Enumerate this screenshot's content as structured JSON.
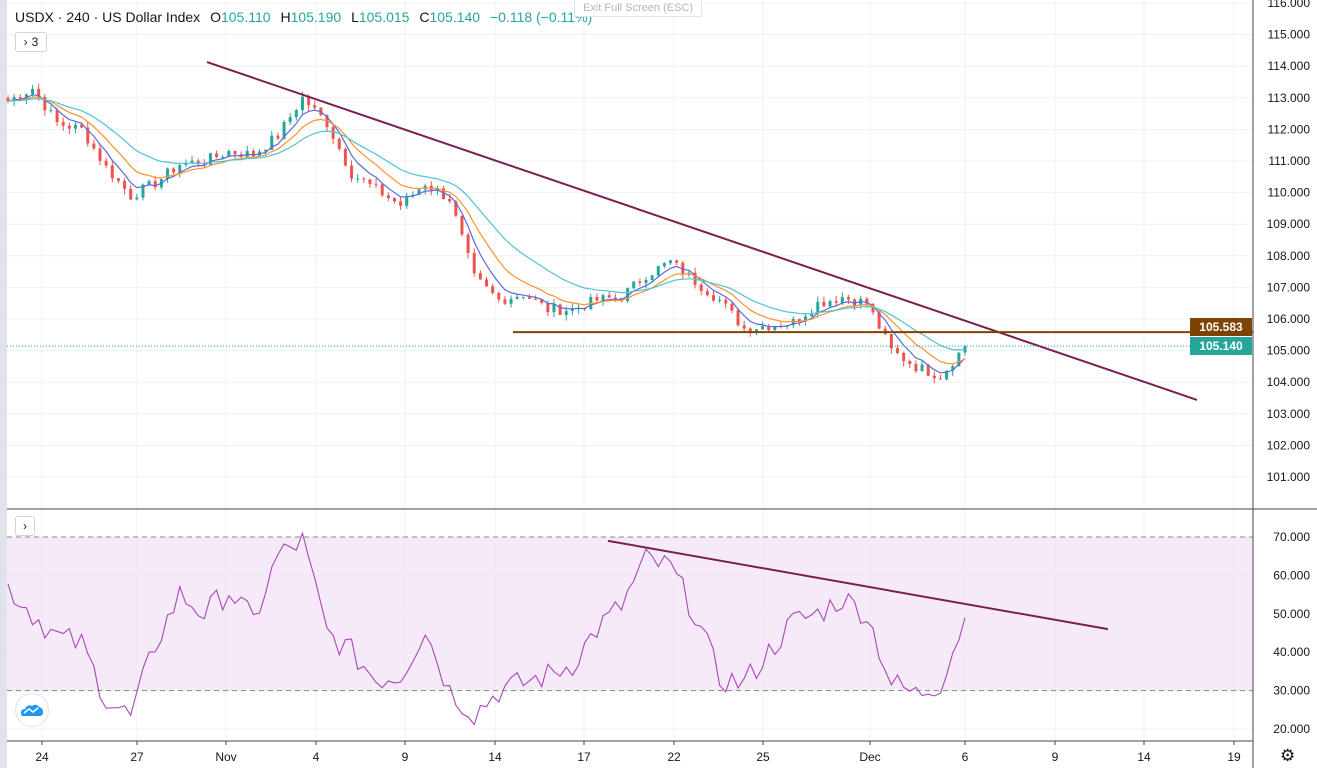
{
  "legend": {
    "symbol_title": "USDX · 240 · US Dollar Index",
    "open_key": "O",
    "open": "105.110",
    "high_key": "H",
    "high": "105.190",
    "low_key": "L",
    "low": "105.015",
    "close_key": "C",
    "close": "105.140",
    "change": "−0.118 (−0.11%)"
  },
  "indicators_toggle": {
    "count": "3",
    "icon": "chevron-right-icon"
  },
  "rsi_toggle": {
    "icon": "chevron-right-icon"
  },
  "exit_fullscreen": "Exit Full Screen (ESC)",
  "price_axis_labels": [
    "116.000",
    "115.000",
    "114.000",
    "113.000",
    "112.000",
    "111.000",
    "110.000",
    "109.000",
    "108.000",
    "107.000",
    "106.000",
    "105.000",
    "104.000",
    "103.000",
    "102.000",
    "101.000"
  ],
  "rsi_axis_labels": [
    "70.000",
    "60.000",
    "50.000",
    "40.000",
    "30.000",
    "20.000"
  ],
  "time_axis_labels": [
    "24",
    "27",
    "Nov",
    "4",
    "9",
    "14",
    "17",
    "22",
    "25",
    "Dec",
    "6",
    "9",
    "14",
    "19"
  ],
  "price_labels": {
    "horizontal_level": "105.583",
    "last_price": "105.140"
  },
  "colors": {
    "up": "#26a69a",
    "down": "#ef5350",
    "ema_fast": "#5b6bd8",
    "ema_mid": "#ff9030",
    "ema_slow": "#4fc3d4",
    "trendline": "#7b1f4e",
    "level": "#7f4300",
    "rsi": "#ab47bc",
    "rsi_band": "#f3e5f5",
    "last_price": "#26a69a"
  },
  "chart_data": [
    {
      "type": "candlestick",
      "title": "USDX · 240 · US Dollar Index",
      "ylim": [
        100.5,
        116.1
      ],
      "grid": true,
      "closes_sampled": [
        112.9,
        113.3,
        112.2,
        112.0,
        110.8,
        109.9,
        110.3,
        110.9,
        111.0,
        111.3,
        111.2,
        111.8,
        113.0,
        112.2,
        110.6,
        110.1,
        109.6,
        110.3,
        109.8,
        107.3,
        106.6,
        106.8,
        106.3,
        106.3,
        106.6,
        106.7,
        107.4,
        107.8,
        107.2,
        106.6,
        105.7,
        105.8,
        105.9,
        106.5,
        106.7,
        106.5,
        105.0,
        104.5,
        104.2,
        105.14
      ],
      "moving_averages": [
        "fast",
        "mid",
        "slow"
      ],
      "trendline": {
        "start": 114.13,
        "end": 103.44
      },
      "horizontal_level": 105.583,
      "last_price": 105.14
    },
    {
      "type": "line",
      "series": [
        {
          "values": [
            57,
            50,
            44,
            42,
            28,
            23,
            42,
            55,
            50,
            56,
            48,
            65,
            69,
            45,
            40,
            33,
            34,
            46,
            30,
            24,
            30,
            32,
            34,
            37,
            46,
            52,
            64,
            62,
            50,
            33,
            32,
            40,
            48,
            50,
            54,
            50,
            32,
            29,
            32,
            49
          ]
        }
      ],
      "ylim": [
        17,
        73
      ],
      "band": [
        30,
        70
      ],
      "trendline": {
        "start": 69.0,
        "end": 46.0
      }
    }
  ]
}
